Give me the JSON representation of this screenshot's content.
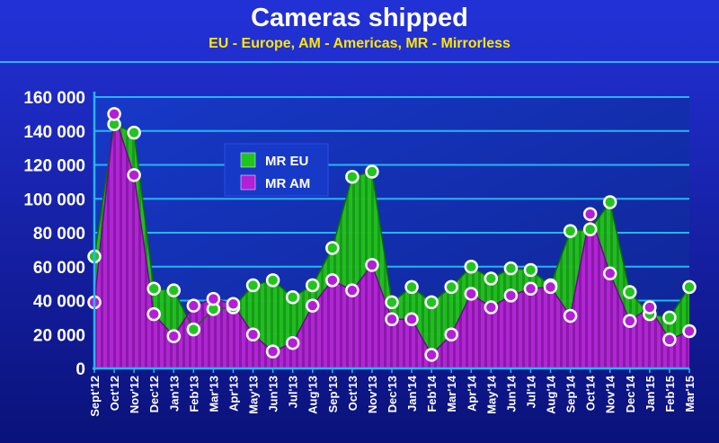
{
  "chart_data": {
    "type": "area",
    "title": "Cameras shipped",
    "subtitle": "EU - Europe, AM - Americas, MR - Mirrorless",
    "xlabel": "",
    "ylabel": "",
    "ylim": [
      0,
      160000
    ],
    "yticks": [
      0,
      20000,
      40000,
      60000,
      80000,
      100000,
      120000,
      140000,
      160000
    ],
    "ytick_labels": [
      "0",
      "20 000",
      "40 000",
      "60 000",
      "80 000",
      "100 000",
      "120 000",
      "140 000",
      "160 000"
    ],
    "grid": true,
    "legend_position": "upper-left-center",
    "categories": [
      "Sept'12",
      "Oct'12",
      "Nov'12",
      "Dec'12",
      "Jan'13",
      "Feb'13",
      "Mar'13",
      "Apr'13",
      "May'13",
      "Jun'13",
      "Jul'13",
      "Aug'13",
      "Sep'13",
      "Oct'13",
      "Nov'13",
      "Dec'13",
      "Jan'14",
      "Feb'14",
      "Mar'14",
      "Apr'14",
      "May'14",
      "Jun'14",
      "Jul'14",
      "Aug'14",
      "Sep'14",
      "Oct'14",
      "Nov'14",
      "Dec'14",
      "Jan'15",
      "Feb'15",
      "Mar'15"
    ],
    "series": [
      {
        "name": "MR EU",
        "color": "#22c51e",
        "values": [
          66000,
          144000,
          139000,
          47000,
          46000,
          23000,
          35000,
          36000,
          49000,
          52000,
          42000,
          49000,
          71000,
          113000,
          116000,
          39000,
          48000,
          39000,
          48000,
          60000,
          53000,
          59000,
          58000,
          49000,
          81000,
          82000,
          98000,
          45000,
          32000,
          30000,
          48000
        ]
      },
      {
        "name": "MR AM",
        "color": "#b21fd6",
        "values": [
          39000,
          150000,
          114000,
          32000,
          19000,
          37000,
          41000,
          38000,
          20000,
          10000,
          15000,
          37000,
          52000,
          46000,
          61000,
          29000,
          29000,
          8000,
          20000,
          44000,
          36000,
          43000,
          47000,
          48000,
          31000,
          91000,
          56000,
          28000,
          36000,
          17000,
          22000
        ]
      }
    ]
  },
  "colors": {
    "background_top": "#1e2bd0",
    "background_bottom": "#0a137a",
    "plot_background": "#1534c0",
    "gridline": "#27b5f0",
    "title_text": "#ffffff",
    "subtitle_text": "#ffe600",
    "axis_text": "#ffffff"
  }
}
